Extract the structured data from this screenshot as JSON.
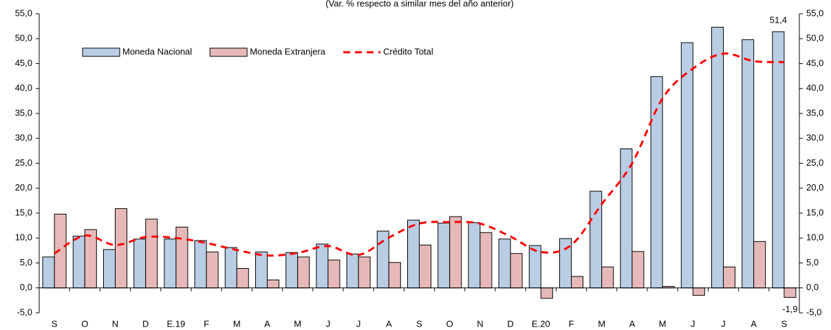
{
  "chart_data": {
    "type": "bar-line",
    "subtitle": "(Var. % respecto a similar mes del año anterior)",
    "categories": [
      "S",
      "O",
      "N",
      "D",
      "E.19",
      "F",
      "M",
      "A",
      "M",
      "J",
      "J",
      "A",
      "S",
      "O",
      "N",
      "D",
      "E.20",
      "F",
      "M",
      "A",
      "M",
      "J",
      "J",
      "A",
      "S"
    ],
    "series": [
      {
        "name": "Moneda Nacional",
        "type": "bar",
        "color": "#b9cde5",
        "values": [
          6.2,
          10.4,
          7.7,
          9.8,
          9.8,
          9.5,
          8.1,
          7.2,
          7.1,
          8.8,
          6.8,
          11.4,
          13.6,
          13.0,
          13.1,
          9.8,
          8.5,
          9.9,
          19.4,
          27.9,
          42.4,
          49.2,
          52.3,
          49.8,
          51.4
        ],
        "value_labels": [
          null,
          null,
          null,
          null,
          null,
          null,
          null,
          null,
          null,
          null,
          null,
          null,
          null,
          null,
          null,
          null,
          null,
          null,
          null,
          null,
          null,
          null,
          null,
          null,
          "51,4"
        ]
      },
      {
        "name": "Moneda Extranjera",
        "type": "bar",
        "color": "#e6b9b8",
        "values": [
          14.8,
          11.7,
          15.9,
          13.8,
          12.2,
          7.2,
          3.9,
          1.6,
          6.2,
          5.6,
          6.2,
          5.1,
          8.6,
          14.3,
          11.1,
          6.9,
          -2.1,
          2.3,
          4.2,
          7.3,
          0.3,
          -1.5,
          4.2,
          9.3,
          -1.9
        ],
        "value_labels": [
          null,
          null,
          null,
          null,
          null,
          null,
          null,
          null,
          null,
          null,
          null,
          null,
          null,
          null,
          null,
          null,
          null,
          null,
          null,
          null,
          null,
          null,
          null,
          null,
          "-1,9"
        ]
      },
      {
        "name": "Crédito Total",
        "type": "line",
        "color": "#ff0000",
        "values": [
          6.9,
          10.5,
          8.6,
          10.2,
          10.0,
          9.0,
          7.6,
          6.5,
          7.0,
          8.4,
          6.6,
          10.1,
          12.9,
          13.2,
          12.9,
          10.3,
          7.2,
          8.6,
          16.8,
          25.0,
          38.0,
          44.0,
          47.0,
          45.5,
          45.3
        ]
      }
    ],
    "ylim": [
      -5,
      55
    ],
    "yticks": [
      {
        "value": -5,
        "label": "-5,0"
      },
      {
        "value": 0,
        "label": "0,0"
      },
      {
        "value": 5,
        "label": "5,0"
      },
      {
        "value": 10,
        "label": "10,0"
      },
      {
        "value": 15,
        "label": "15,0"
      },
      {
        "value": 20,
        "label": "20,0"
      },
      {
        "value": 25,
        "label": "25,0"
      },
      {
        "value": 30,
        "label": "30,0"
      },
      {
        "value": 35,
        "label": "35,0"
      },
      {
        "value": 40,
        "label": "40,0"
      },
      {
        "value": 45,
        "label": "45,0"
      },
      {
        "value": 50,
        "label": "50,0"
      },
      {
        "value": 55,
        "label": "55,0"
      }
    ],
    "y2lim": [
      -5,
      55
    ],
    "y2ticks": [
      {
        "value": -5,
        "label": "-5,0"
      },
      {
        "value": 0,
        "label": "0,0"
      },
      {
        "value": 5,
        "label": "5,0"
      },
      {
        "value": 10,
        "label": "10,0"
      },
      {
        "value": 15,
        "label": "15,0"
      },
      {
        "value": 20,
        "label": "20,0"
      },
      {
        "value": 25,
        "label": "25,0"
      },
      {
        "value": 30,
        "label": "30,0"
      },
      {
        "value": 35,
        "label": "35,0"
      },
      {
        "value": 40,
        "label": "40,0"
      },
      {
        "value": 45,
        "label": "45,0"
      },
      {
        "value": 50,
        "label": "50,0"
      },
      {
        "value": 55,
        "label": "55,0"
      }
    ],
    "legend": "top-left"
  }
}
